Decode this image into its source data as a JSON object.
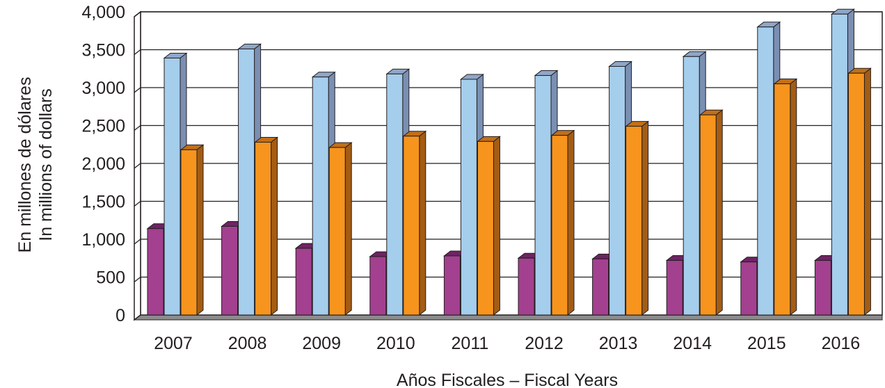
{
  "chart_data": {
    "type": "bar",
    "title": "",
    "xlabel": "Años Fiscales – Fiscal Years",
    "ylabel": [
      "En millones de dólares",
      "In millions of dollars"
    ],
    "categories": [
      "2007",
      "2008",
      "2009",
      "2010",
      "2011",
      "2012",
      "2013",
      "2014",
      "2015",
      "2016"
    ],
    "ylim": [
      0,
      4000
    ],
    "yticks": [
      "0",
      "500",
      "1,000",
      "1,500",
      "2,000",
      "2,500",
      "3,000",
      "3,500",
      "4,000"
    ],
    "ytick_values": [
      0,
      500,
      1000,
      1500,
      2000,
      2500,
      3000,
      3500,
      4000
    ],
    "grid": true,
    "series": [
      {
        "values": [
          1140,
          1170,
          880,
          770,
          780,
          750,
          740,
          720,
          700,
          720
        ],
        "color": "#a3408f",
        "top_color": "#6d2463",
        "side_color": "#5a1d52"
      },
      {
        "values": [
          3390,
          3510,
          3140,
          3180,
          3110,
          3160,
          3280,
          3410,
          3800,
          3970
        ],
        "color": "#a5cdec",
        "top_color": "#8fa7c8",
        "side_color": "#7a8fb2"
      },
      {
        "values": [
          2180,
          2280,
          2210,
          2360,
          2290,
          2370,
          2490,
          2640,
          3050,
          3190
        ],
        "color": "#f7941d",
        "top_color": "#c26f18",
        "side_color": "#a35c14"
      }
    ]
  }
}
